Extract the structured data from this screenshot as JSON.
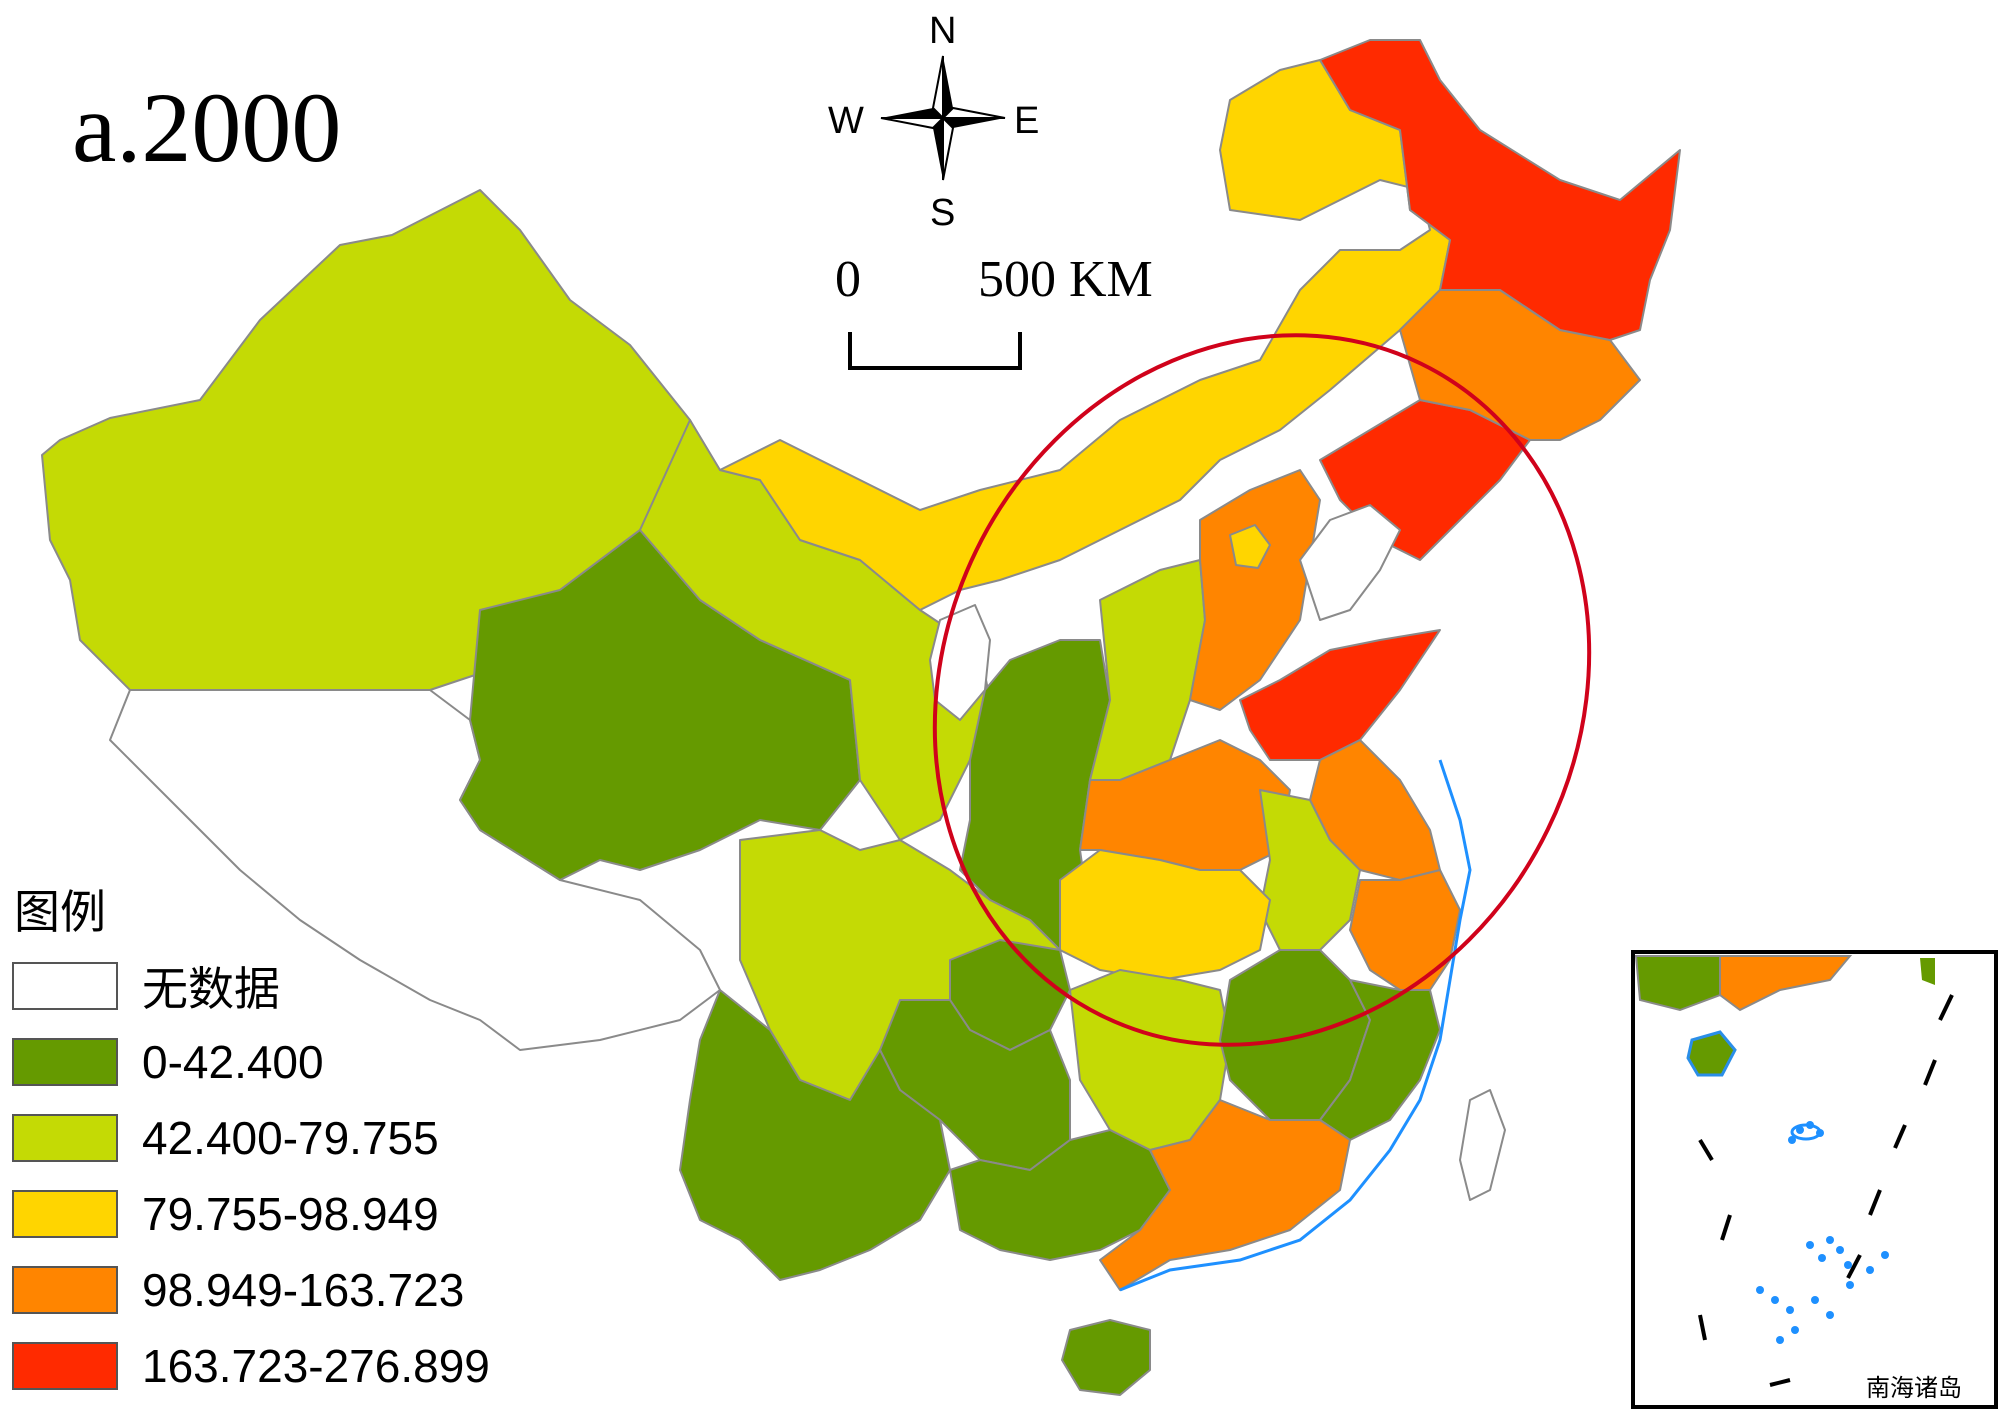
{
  "title": "a.2000",
  "compass": {
    "n": "N",
    "s": "S",
    "e": "E",
    "w": "W"
  },
  "scale": {
    "start": "0",
    "end": "500 KM"
  },
  "legend": {
    "title": "图例",
    "items": [
      {
        "label": "无数据",
        "color": "#ffffff"
      },
      {
        "label": "0-42.400",
        "color": "#659a00"
      },
      {
        "label": "42.400-79.755",
        "color": "#c4da05"
      },
      {
        "label": "79.755-98.949",
        "color": "#ffd500"
      },
      {
        "label": "98.949-163.723",
        "color": "#ff8500"
      },
      {
        "label": "163.723-276.899",
        "color": "#ff2a00"
      }
    ]
  },
  "inset": {
    "label": "南海诸岛"
  },
  "colors": {
    "no_data": "#ffffff",
    "class1": "#659a00",
    "class2": "#c4da05",
    "class3": "#ffd500",
    "class4": "#ff8500",
    "class5": "#ff2a00",
    "water": "#1e90ff",
    "highlight_ellipse": "#d0021b"
  }
}
